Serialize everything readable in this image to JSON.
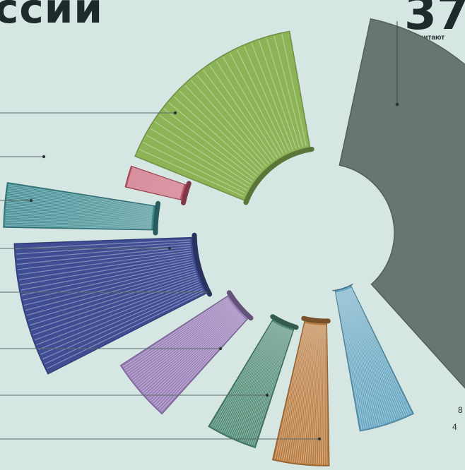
{
  "chart_data": {
    "type": "pie",
    "title": "ссии",
    "highlight_value": "37",
    "highlight_label": "Не читают книги",
    "slices": [
      {
        "label": "Не читают книги",
        "color": "#677671"
      },
      {
        "label": "",
        "color": "#8cb356"
      },
      {
        "label": "",
        "color": "#c4566a"
      },
      {
        "label": "",
        "color": "#3f8c92"
      },
      {
        "label": "",
        "color": "#3f4d93"
      },
      {
        "label": "",
        "color": "#9a80b9"
      },
      {
        "label": "",
        "color": "#4e8a73"
      },
      {
        "label": "",
        "color": "#b97c40"
      },
      {
        "label": "",
        "color": "#67a6c2"
      }
    ],
    "edge_text": [
      "8",
      "4"
    ]
  }
}
